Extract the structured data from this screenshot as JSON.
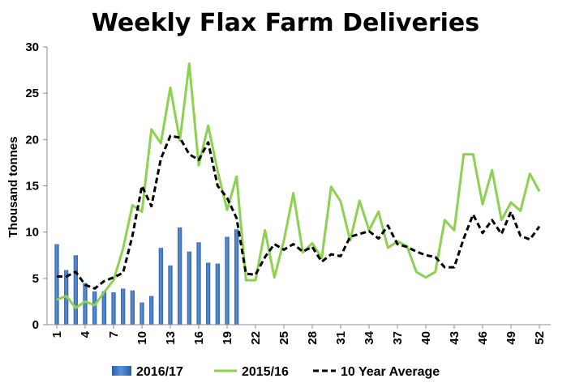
{
  "chart_data": {
    "type": "bar",
    "title": "Weekly Flax Farm Deliveries",
    "ylabel": "Thousand tonnes",
    "xlabel": "",
    "ylim": [
      0,
      30
    ],
    "yticks": [
      0,
      5,
      10,
      15,
      20,
      25,
      30
    ],
    "xlim": [
      1,
      52
    ],
    "xticks": [
      1,
      4,
      7,
      10,
      13,
      16,
      19,
      22,
      25,
      28,
      31,
      34,
      37,
      40,
      43,
      46,
      49,
      52
    ],
    "grid": false,
    "legend_position": "bottom",
    "series": [
      {
        "name": "2016/17",
        "type": "bar",
        "color": "#3f78c0",
        "x": [
          1,
          2,
          3,
          4,
          5,
          6,
          7,
          8,
          9,
          10,
          11,
          12,
          13,
          14,
          15,
          16,
          17,
          18,
          19,
          20
        ],
        "values": [
          8.7,
          5.9,
          7.5,
          4.5,
          3.6,
          3.6,
          3.5,
          3.9,
          3.7,
          2.4,
          3.1,
          8.3,
          6.4,
          10.5,
          7.9,
          8.9,
          6.7,
          6.6,
          9.5,
          10.3
        ]
      },
      {
        "name": "2015/16",
        "type": "line",
        "color": "#8cd14f",
        "x": [
          1,
          2,
          3,
          4,
          5,
          6,
          7,
          8,
          9,
          10,
          11,
          12,
          13,
          14,
          15,
          16,
          17,
          18,
          19,
          20,
          21,
          22,
          23,
          24,
          25,
          26,
          27,
          28,
          29,
          30,
          31,
          32,
          33,
          34,
          35,
          36,
          37,
          38,
          39,
          40,
          41,
          42,
          43,
          44,
          45,
          46,
          47,
          48,
          49,
          50,
          51,
          52
        ],
        "values": [
          2.7,
          3.1,
          1.8,
          2.5,
          2.1,
          3.5,
          4.8,
          8.2,
          12.9,
          12.2,
          21.1,
          19.6,
          25.6,
          19.9,
          28.2,
          17.2,
          21.5,
          16.6,
          12.4,
          16.0,
          4.8,
          4.8,
          10.2,
          5.1,
          9.1,
          14.2,
          7.8,
          8.8,
          7.2,
          14.9,
          13.3,
          9.1,
          13.4,
          10.2,
          12.2,
          8.3,
          9.0,
          8.5,
          5.7,
          5.1,
          5.7,
          11.3,
          10.2,
          18.4,
          18.4,
          13.0,
          16.7,
          11.3,
          13.2,
          12.3,
          16.3,
          14.4
        ]
      },
      {
        "name": "10 Year Average",
        "type": "line",
        "style": "dashed",
        "color": "#000000",
        "x": [
          1,
          2,
          3,
          4,
          5,
          6,
          7,
          8,
          9,
          10,
          11,
          12,
          13,
          14,
          15,
          16,
          17,
          18,
          19,
          20,
          21,
          22,
          23,
          24,
          25,
          26,
          27,
          28,
          29,
          30,
          31,
          32,
          33,
          34,
          35,
          36,
          37,
          38,
          39,
          40,
          41,
          42,
          43,
          44,
          45,
          46,
          47,
          48,
          49,
          50,
          51,
          52
        ],
        "values": [
          5.2,
          5.2,
          5.7,
          4.3,
          3.9,
          4.7,
          5.1,
          5.6,
          9.6,
          15.0,
          12.8,
          17.9,
          20.4,
          20.2,
          18.4,
          17.8,
          19.7,
          15.0,
          13.7,
          11.5,
          5.5,
          5.4,
          7.3,
          8.7,
          8.1,
          8.7,
          7.9,
          8.4,
          6.8,
          7.6,
          7.4,
          9.5,
          9.8,
          10.1,
          9.3,
          10.7,
          8.7,
          8.4,
          7.9,
          7.5,
          7.3,
          6.2,
          6.2,
          9.3,
          11.9,
          9.9,
          11.3,
          9.8,
          12.2,
          9.6,
          9.2,
          10.6
        ]
      }
    ]
  }
}
